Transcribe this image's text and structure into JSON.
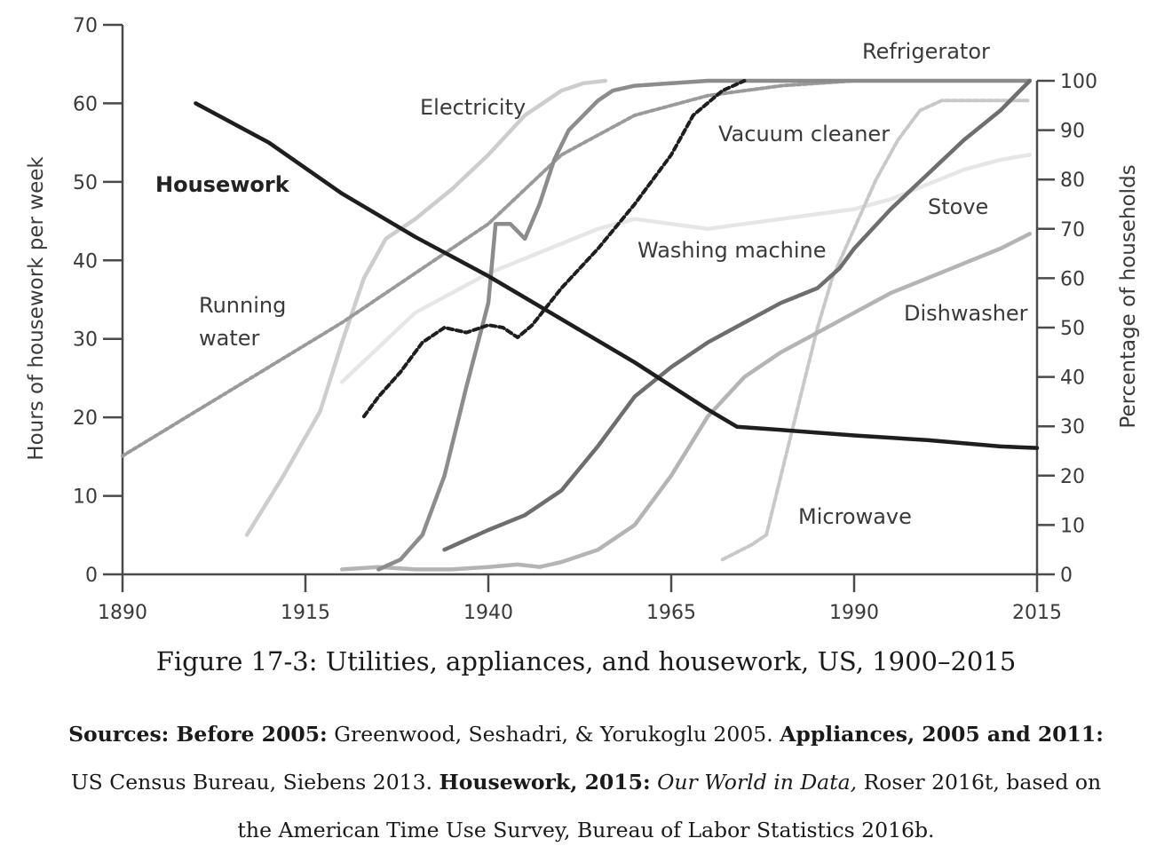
{
  "chart_data": {
    "type": "line",
    "caption": "Figure 17-3: Utilities, appliances, and housework, US, 1900–2015",
    "ylabel_left": "Hours of housework per week",
    "ylabel_right": "Percentage of households",
    "x_ticks": [
      "1890",
      "1915",
      "1940",
      "1965",
      "1990",
      "2015"
    ],
    "y_left_ticks": [
      "0",
      "10",
      "20",
      "30",
      "40",
      "50",
      "60",
      "70"
    ],
    "y_right_ticks": [
      "0",
      "10",
      "20",
      "30",
      "40",
      "50",
      "60",
      "70",
      "80",
      "90",
      "100"
    ],
    "xlim": [
      1890,
      2015
    ],
    "ylim_left": [
      0,
      70
    ],
    "ylim_right": [
      0,
      100
    ],
    "series": [
      {
        "name": "Housework",
        "axis": "left",
        "color": "#1e1e1e",
        "dash": "",
        "width": 4.5,
        "bold_label": true,
        "x": [
          1900,
          1910,
          1920,
          1930,
          1940,
          1950,
          1960,
          1965,
          1970,
          1974,
          1980,
          1990,
          2000,
          2010,
          2015
        ],
        "y": [
          60,
          55,
          48.5,
          43,
          38,
          32.5,
          27,
          24,
          21,
          18.8,
          18.4,
          17.7,
          17.1,
          16.3,
          16.1
        ]
      },
      {
        "name": "Running water",
        "axis": "right",
        "color": "#9a9a9a",
        "dash": "4 3",
        "width": 4,
        "x": [
          1890,
          1900,
          1910,
          1920,
          1930,
          1940,
          1950,
          1960,
          1970,
          1980,
          1990,
          2000
        ],
        "y": [
          24,
          33,
          42,
          51,
          61,
          71,
          85,
          93,
          97,
          99,
          100,
          100
        ]
      },
      {
        "name": "Electricity",
        "axis": "right",
        "color": "#cdcdcd",
        "dash": "",
        "width": 4.5,
        "x": [
          1907,
          1912,
          1917,
          1920,
          1923,
          1926,
          1930,
          1935,
          1940,
          1945,
          1950,
          1953,
          1956
        ],
        "y": [
          8,
          20,
          33,
          47,
          60,
          68,
          72,
          78,
          85,
          93,
          98,
          99.5,
          100
        ]
      },
      {
        "name": "Refrigerator",
        "axis": "right",
        "color": "#8c8c8c",
        "dash": "",
        "width": 4.5,
        "x": [
          1925,
          1928,
          1931,
          1934,
          1937,
          1940,
          1941,
          1943,
          1945,
          1947,
          1949,
          1951,
          1953,
          1955,
          1957,
          1960,
          1965,
          1970,
          1980,
          1990,
          2000,
          2014
        ],
        "y": [
          1,
          3,
          8,
          20,
          38,
          55,
          71,
          71,
          68,
          75,
          84,
          90,
          93,
          96,
          98,
          99,
          99.5,
          100,
          100,
          100,
          100,
          100
        ]
      },
      {
        "name": "Vacuum cleaner",
        "axis": "right",
        "color": "#1e1e1e",
        "dash": "6 4",
        "width": 4,
        "x": [
          1923,
          1925,
          1928,
          1931,
          1934,
          1937,
          1940,
          1942,
          1944,
          1946,
          1950,
          1955,
          1960,
          1965,
          1968,
          1972,
          1975
        ],
        "y": [
          32,
          36,
          41,
          47,
          50,
          49,
          50.5,
          50,
          48,
          50.5,
          58,
          66,
          75,
          85,
          93,
          98,
          100
        ]
      },
      {
        "name": "Washing machine",
        "axis": "right",
        "color": "#e6e6e6",
        "dash": "",
        "width": 4.5,
        "x": [
          1920,
          1925,
          1930,
          1935,
          1940,
          1945,
          1950,
          1955,
          1960,
          1965,
          1970,
          1975,
          1980,
          1985,
          1990,
          1995,
          2000,
          2005,
          2010,
          2014
        ],
        "y": [
          39,
          46,
          53,
          57,
          61,
          64,
          67,
          70,
          72,
          71,
          70,
          71,
          72,
          73,
          74,
          76,
          79,
          82,
          84,
          85
        ]
      },
      {
        "name": "Stove",
        "axis": "right",
        "color": "#6e6e6e",
        "dash": "",
        "width": 4.5,
        "x": [
          1934,
          1940,
          1945,
          1950,
          1955,
          1960,
          1965,
          1970,
          1975,
          1980,
          1985,
          1988,
          1990,
          1995,
          2000,
          2005,
          2010,
          2014
        ],
        "y": [
          5,
          9,
          12,
          17,
          26,
          36,
          42,
          47,
          51,
          55,
          58,
          62,
          66,
          74,
          81,
          88,
          94,
          100
        ]
      },
      {
        "name": "Dishwasher",
        "axis": "right",
        "color": "#b4b4b4",
        "dash": "",
        "width": 4.5,
        "x": [
          1920,
          1925,
          1930,
          1935,
          1940,
          1944,
          1947,
          1950,
          1955,
          1960,
          1965,
          1970,
          1975,
          1980,
          1985,
          1990,
          1995,
          2000,
          2005,
          2010,
          2014
        ],
        "y": [
          1,
          1.5,
          1,
          1,
          1.5,
          2,
          1.5,
          2.5,
          5,
          10,
          20,
          32,
          40,
          45,
          49,
          53,
          57,
          60,
          63,
          66,
          69
        ]
      },
      {
        "name": "Microwave",
        "axis": "right",
        "color": "#c8c8c8",
        "dash": "5 3",
        "width": 4,
        "x": [
          1972,
          1976,
          1978,
          1980,
          1983,
          1985,
          1987,
          1990,
          1993,
          1996,
          1999,
          2002,
          2005,
          2014
        ],
        "y": [
          3,
          6,
          8,
          20,
          38,
          50,
          60,
          70,
          80,
          88,
          94,
          96,
          96,
          96
        ]
      }
    ],
    "labels": {
      "housework": "Housework",
      "running_water_1": "Running",
      "running_water_2": "water",
      "electricity": "Electricity",
      "refrigerator": "Refrigerator",
      "vacuum_cleaner": "Vacuum cleaner",
      "washing_machine": "Washing machine",
      "stove": "Stove",
      "dishwasher": "Dishwasher",
      "microwave": "Microwave"
    },
    "grid": false
  },
  "sources": {
    "label_before": "Sources: Before 2005:",
    "text_before": " Greenwood, Seshadri, & Yorukoglu 2005. ",
    "label_appliances": "Appliances, 2005 and 2011:",
    "text_appliances": " US Census Bureau, Siebens 2013. ",
    "label_housework": "Housework, 2015:",
    "text_owid": "Our World in Data,",
    "text_rest": " Roser 2016t, based on the American Time Use Survey, Bureau of Labor Statistics 2016b."
  }
}
